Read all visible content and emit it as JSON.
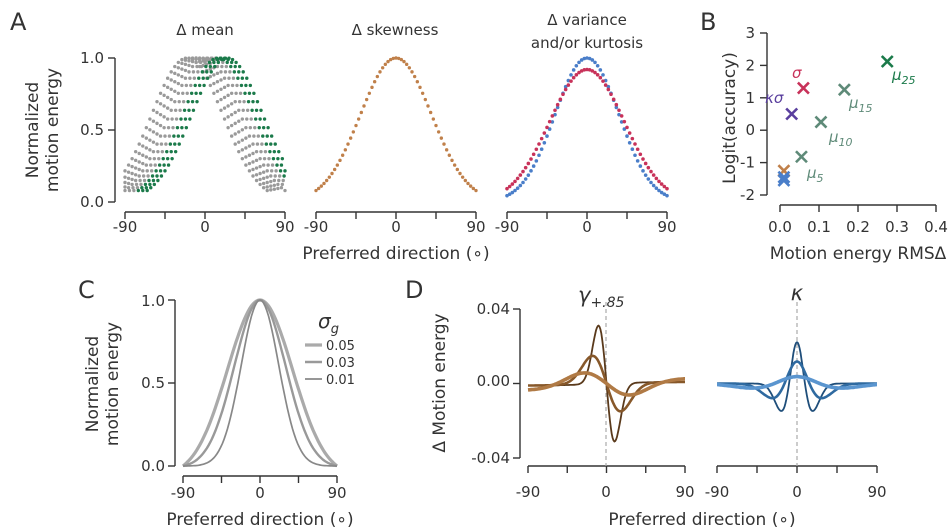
{
  "panel_letters": [
    "A",
    "B",
    "C",
    "D"
  ],
  "panelA": {
    "titles": [
      "Δ mean",
      "Δ skewness",
      "Δ variance",
      "and/or kurtosis"
    ],
    "ylabel_lines": [
      "Normalized",
      "motion energy"
    ],
    "xlabel": "Preferred direction (∘)",
    "yticks": [
      "0.0",
      "0.5",
      "1.0"
    ],
    "xticks": [
      "-90",
      "0",
      "90"
    ]
  },
  "panelB": {
    "ylabel": "Logit(accuracy)",
    "xlabel": "Motion energy RMSΔ",
    "yticks": [
      "-2",
      "-1",
      "0",
      "1",
      "2",
      "3"
    ],
    "xticks": [
      "0.0",
      "0.1",
      "0.2",
      "0.3",
      "0.4"
    ],
    "labels": {
      "sigma": "σ",
      "kappa_sigma": "κσ",
      "mu5": "μ",
      "mu5_sub": "5",
      "mu10": "μ",
      "mu10_sub": "10",
      "mu15": "μ",
      "mu15_sub": "15",
      "mu25": "μ",
      "mu25_sub": "25"
    }
  },
  "panelC": {
    "ylabel_lines": [
      "Normalized",
      "motion energy"
    ],
    "xlabel": "Preferred direction (∘)",
    "legend_title": "σ",
    "legend_title_sub": "g",
    "legend_entries": [
      "0.05",
      "0.03",
      "0.01"
    ],
    "yticks": [
      "0.0",
      "0.5",
      "1.0"
    ],
    "xticks": [
      "-90",
      "0",
      "90"
    ]
  },
  "panelD": {
    "ylabel": "Δ Motion energy",
    "xlabel": "Preferred direction (∘)",
    "left_title": "γ",
    "left_title_sub": "+.85",
    "right_title": "κ",
    "yticks": [
      "-0.04",
      "0.00",
      "0.04"
    ],
    "xticks_left": [
      "-90",
      "0",
      "90"
    ],
    "xticks_right": [
      "-90",
      "0",
      "90"
    ]
  },
  "colors": {
    "gray": "#9a9a9a",
    "green": "#1b7a4a",
    "orange": "#c0804a",
    "blue": "#4a7ec9",
    "red": "#c8325a",
    "purple": "#5a3f9e",
    "teal_gray": "#5e8a78",
    "brown_dark": "#5a3a1c",
    "brown_mid": "#87582a",
    "brown_light": "#b07a45",
    "blue_dark": "#1f4e7a",
    "blue_mid": "#2f6aa0",
    "blue_light": "#5a95cf"
  },
  "chart_data": [
    {
      "id": "A1",
      "type": "scatter",
      "title": "Δ mean",
      "xlim": [
        -90,
        90
      ],
      "ylim": [
        0,
        1
      ],
      "shape": "gaussian",
      "shift_series_means": [
        -20,
        -15,
        -10,
        -5,
        0,
        5,
        10,
        15,
        20,
        25
      ],
      "x_range": [
        -90,
        90
      ]
    },
    {
      "id": "A2",
      "type": "scatter",
      "title": "Δ skewness",
      "xlim": [
        -90,
        90
      ],
      "ylim": [
        0,
        1
      ],
      "shape": "gaussian",
      "means": [
        0
      ]
    },
    {
      "id": "A3",
      "type": "scatter",
      "title": "Δ variance and/or kurtosis",
      "xlim": [
        -90,
        90
      ],
      "ylim": [
        0,
        1
      ],
      "series": [
        {
          "color": "blue",
          "peak": 1.0
        },
        {
          "color": "red",
          "peak": 0.92
        }
      ]
    },
    {
      "id": "B",
      "type": "scatter",
      "xlabel": "Motion energy RMSΔ",
      "ylabel": "Logit(accuracy)",
      "xlim": [
        -0.02,
        0.4
      ],
      "ylim": [
        -2,
        3
      ],
      "points": [
        {
          "x": 0.01,
          "y": -1.25,
          "color": "orange"
        },
        {
          "x": 0.01,
          "y": -1.45,
          "color": "blue"
        },
        {
          "x": 0.01,
          "y": -1.55,
          "color": "blue"
        },
        {
          "x": 0.03,
          "y": 0.5,
          "color": "purple",
          "label": "kappa_sigma"
        },
        {
          "x": 0.06,
          "y": 1.3,
          "color": "red",
          "label": "sigma"
        },
        {
          "x": 0.055,
          "y": -0.82,
          "color": "teal_gray",
          "label": "mu5"
        },
        {
          "x": 0.105,
          "y": 0.25,
          "color": "teal_gray",
          "label": "mu10"
        },
        {
          "x": 0.165,
          "y": 1.25,
          "color": "teal_gray",
          "label": "mu15"
        },
        {
          "x": 0.275,
          "y": 2.12,
          "color": "green",
          "label": "mu25"
        }
      ]
    },
    {
      "id": "C",
      "type": "line",
      "xlim": [
        -90,
        90
      ],
      "ylim": [
        0,
        1
      ],
      "series": [
        {
          "name": "0.05",
          "sigma": 38
        },
        {
          "name": "0.03",
          "sigma": 30
        },
        {
          "name": "0.01",
          "sigma": 22
        }
      ]
    },
    {
      "id": "D-left",
      "type": "line",
      "title": "γ+.85",
      "xlim": [
        -90,
        90
      ],
      "ylim": [
        -0.04,
        0.04
      ],
      "series": [
        {
          "color": "brown_dark",
          "width": 8,
          "amp": 0.037
        },
        {
          "color": "brown_mid",
          "width": 14,
          "amp": 0.018
        },
        {
          "color": "brown_light",
          "width": 24,
          "amp": 0.009
        }
      ]
    },
    {
      "id": "D-right",
      "type": "line",
      "title": "κ",
      "xlim": [
        -90,
        90
      ],
      "ylim": [
        -0.04,
        0.04
      ],
      "series": [
        {
          "color": "blue_dark",
          "width": 7,
          "amp": 0.03
        },
        {
          "color": "blue_mid",
          "width": 11,
          "amp": 0.016
        },
        {
          "color": "blue_light",
          "width": 20,
          "amp": 0.005
        }
      ]
    }
  ]
}
